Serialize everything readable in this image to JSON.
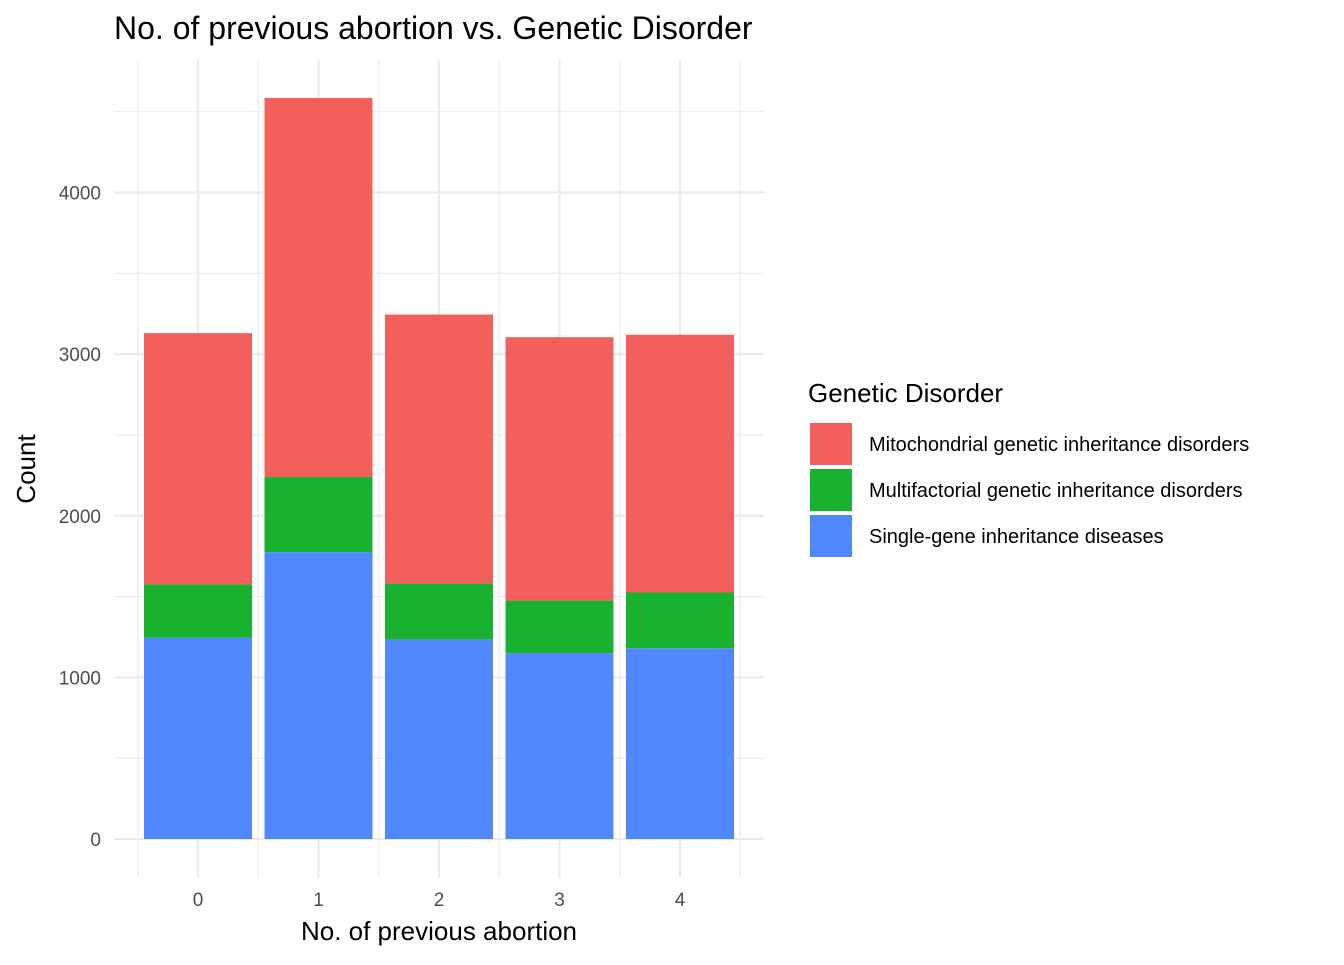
{
  "chart_data": {
    "type": "bar",
    "stacked": true,
    "title": "No. of previous abortion vs. Genetic Disorder",
    "xlabel": "No. of previous abortion",
    "ylabel": "Count",
    "categories": [
      "0",
      "1",
      "2",
      "3",
      "4"
    ],
    "ylim": [
      0,
      4720
    ],
    "yticks": [
      0,
      1000,
      2000,
      3000,
      4000
    ],
    "grid": true,
    "legend": {
      "title": "Genetic Disorder",
      "position": "right"
    },
    "series": [
      {
        "name": "Single-gene inheritance diseases",
        "color": "#5088ff",
        "values": [
          1245,
          1775,
          1235,
          1150,
          1180
        ]
      },
      {
        "name": "Multifactorial genetic inheritance disorders",
        "color": "#19b230",
        "values": [
          330,
          465,
          345,
          325,
          345
        ]
      },
      {
        "name": "Mitochondrial genetic inheritance disorders",
        "color": "#f3605c",
        "values": [
          1555,
          2345,
          1665,
          1630,
          1595
        ]
      }
    ],
    "legend_order": [
      "Mitochondrial genetic inheritance disorders",
      "Multifactorial genetic inheritance disorders",
      "Single-gene inheritance diseases"
    ]
  }
}
